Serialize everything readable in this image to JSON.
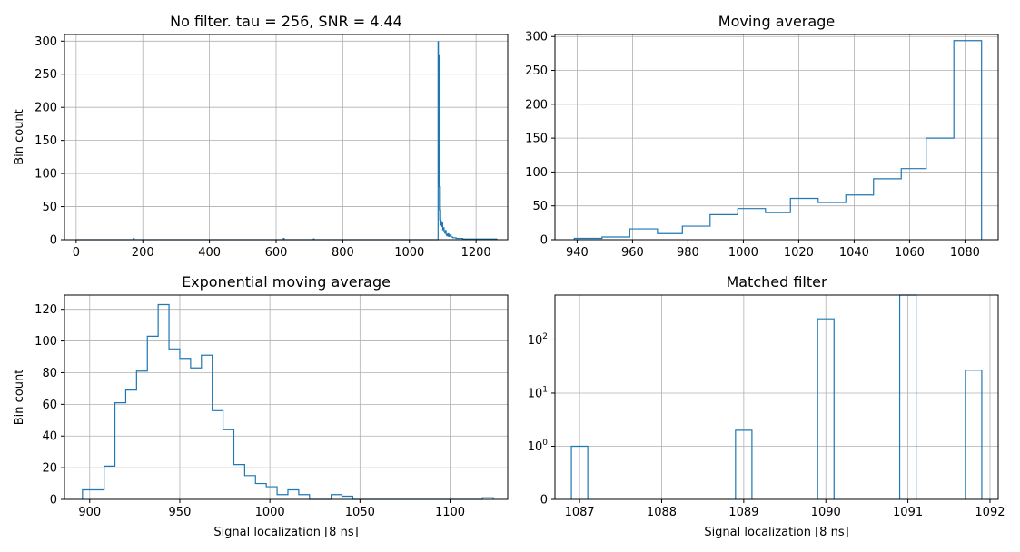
{
  "figure": {
    "colors": {
      "line": "#1f77b4",
      "grid": "#b0b0b0",
      "axis": "#000000"
    }
  },
  "chart_data": [
    {
      "type": "line",
      "subtype": "step-histogram",
      "title": "No filter. tau = 256, SNR = 4.44",
      "xlabel": "",
      "ylabel": "Bin count",
      "xlim": [
        -35,
        1295
      ],
      "ylim": [
        0,
        310
      ],
      "xticks": [
        0,
        200,
        400,
        600,
        800,
        1000,
        1200
      ],
      "yticks": [
        0,
        50,
        100,
        150,
        200,
        250,
        300
      ],
      "grid": true,
      "x": [
        0,
        170,
        172,
        174,
        620,
        622,
        624,
        710,
        712,
        714,
        1085,
        1086,
        1087,
        1088,
        1089,
        1090,
        1091,
        1092,
        1094,
        1096,
        1098,
        1100,
        1102,
        1104,
        1106,
        1108,
        1110,
        1112,
        1115,
        1118,
        1121,
        1125,
        1130,
        1140,
        1160,
        1200,
        1262
      ],
      "y": [
        0,
        0,
        2,
        0,
        0,
        2,
        0,
        0,
        1,
        0,
        0,
        299,
        150,
        278,
        80,
        45,
        30,
        22,
        28,
        20,
        25,
        15,
        18,
        12,
        10,
        14,
        8,
        6,
        9,
        5,
        7,
        4,
        3,
        2,
        1,
        1,
        0
      ]
    },
    {
      "type": "line",
      "subtype": "step-histogram",
      "title": "Moving average",
      "xlabel": "",
      "ylabel": "",
      "xlim": [
        932,
        1092
      ],
      "ylim": [
        0,
        303
      ],
      "xticks": [
        940,
        960,
        980,
        1000,
        1020,
        1040,
        1060,
        1080
      ],
      "yticks": [
        0,
        50,
        100,
        150,
        200,
        250,
        300
      ],
      "grid": true,
      "bin_edges": [
        939,
        949,
        959,
        969,
        978,
        988,
        998,
        1008,
        1017,
        1027,
        1037,
        1047,
        1057,
        1066,
        1076,
        1086
      ],
      "values": [
        2,
        4,
        16,
        9,
        20,
        37,
        46,
        40,
        61,
        55,
        66,
        90,
        105,
        150,
        294
      ]
    },
    {
      "type": "line",
      "subtype": "step-histogram",
      "title": "Exponential moving average",
      "xlabel": "Signal localization [8 ns]",
      "ylabel": "Bin count",
      "xlim": [
        886,
        1132
      ],
      "ylim": [
        0,
        129
      ],
      "xticks": [
        900,
        950,
        1000,
        1050,
        1100
      ],
      "yticks": [
        0,
        20,
        40,
        60,
        80,
        100,
        120
      ],
      "grid": true,
      "bin_edges": [
        896,
        902,
        908,
        914,
        920,
        926,
        932,
        938,
        944,
        950,
        956,
        962,
        968,
        974,
        980,
        986,
        992,
        998,
        1004,
        1010,
        1016,
        1022,
        1028,
        1034,
        1040,
        1046,
        1052,
        1058,
        1064,
        1070,
        1076,
        1082,
        1088,
        1094,
        1100,
        1106,
        1112,
        1118,
        1124
      ],
      "values": [
        6,
        6,
        21,
        61,
        69,
        81,
        103,
        123,
        95,
        89,
        83,
        91,
        56,
        44,
        22,
        15,
        10,
        8,
        3,
        6,
        3,
        0,
        0,
        3,
        2,
        0,
        0,
        0,
        0,
        0,
        0,
        0,
        0,
        0,
        0,
        0,
        0,
        1
      ]
    },
    {
      "type": "bar",
      "subtype": "step-histogram-outline",
      "title": "Matched filter",
      "xlabel": "Signal localization [8 ns]",
      "ylabel": "",
      "xlim": [
        1086.7,
        1092.1
      ],
      "yscale": "symlog",
      "ylim": [
        0,
        700
      ],
      "xticks": [
        1087,
        1088,
        1089,
        1090,
        1091,
        1092
      ],
      "ytick_labels": [
        "0",
        "10^0",
        "10^1",
        "10^2"
      ],
      "grid": true,
      "bars": [
        {
          "from": 1086.9,
          "to": 1087.1,
          "value": 1
        },
        {
          "from": 1088.9,
          "to": 1089.1,
          "value": 2
        },
        {
          "from": 1089.9,
          "to": 1090.1,
          "value": 250
        },
        {
          "from": 1090.9,
          "to": 1091.1,
          "value": 700
        },
        {
          "from": 1091.7,
          "to": 1091.9,
          "value": 27
        }
      ]
    }
  ]
}
